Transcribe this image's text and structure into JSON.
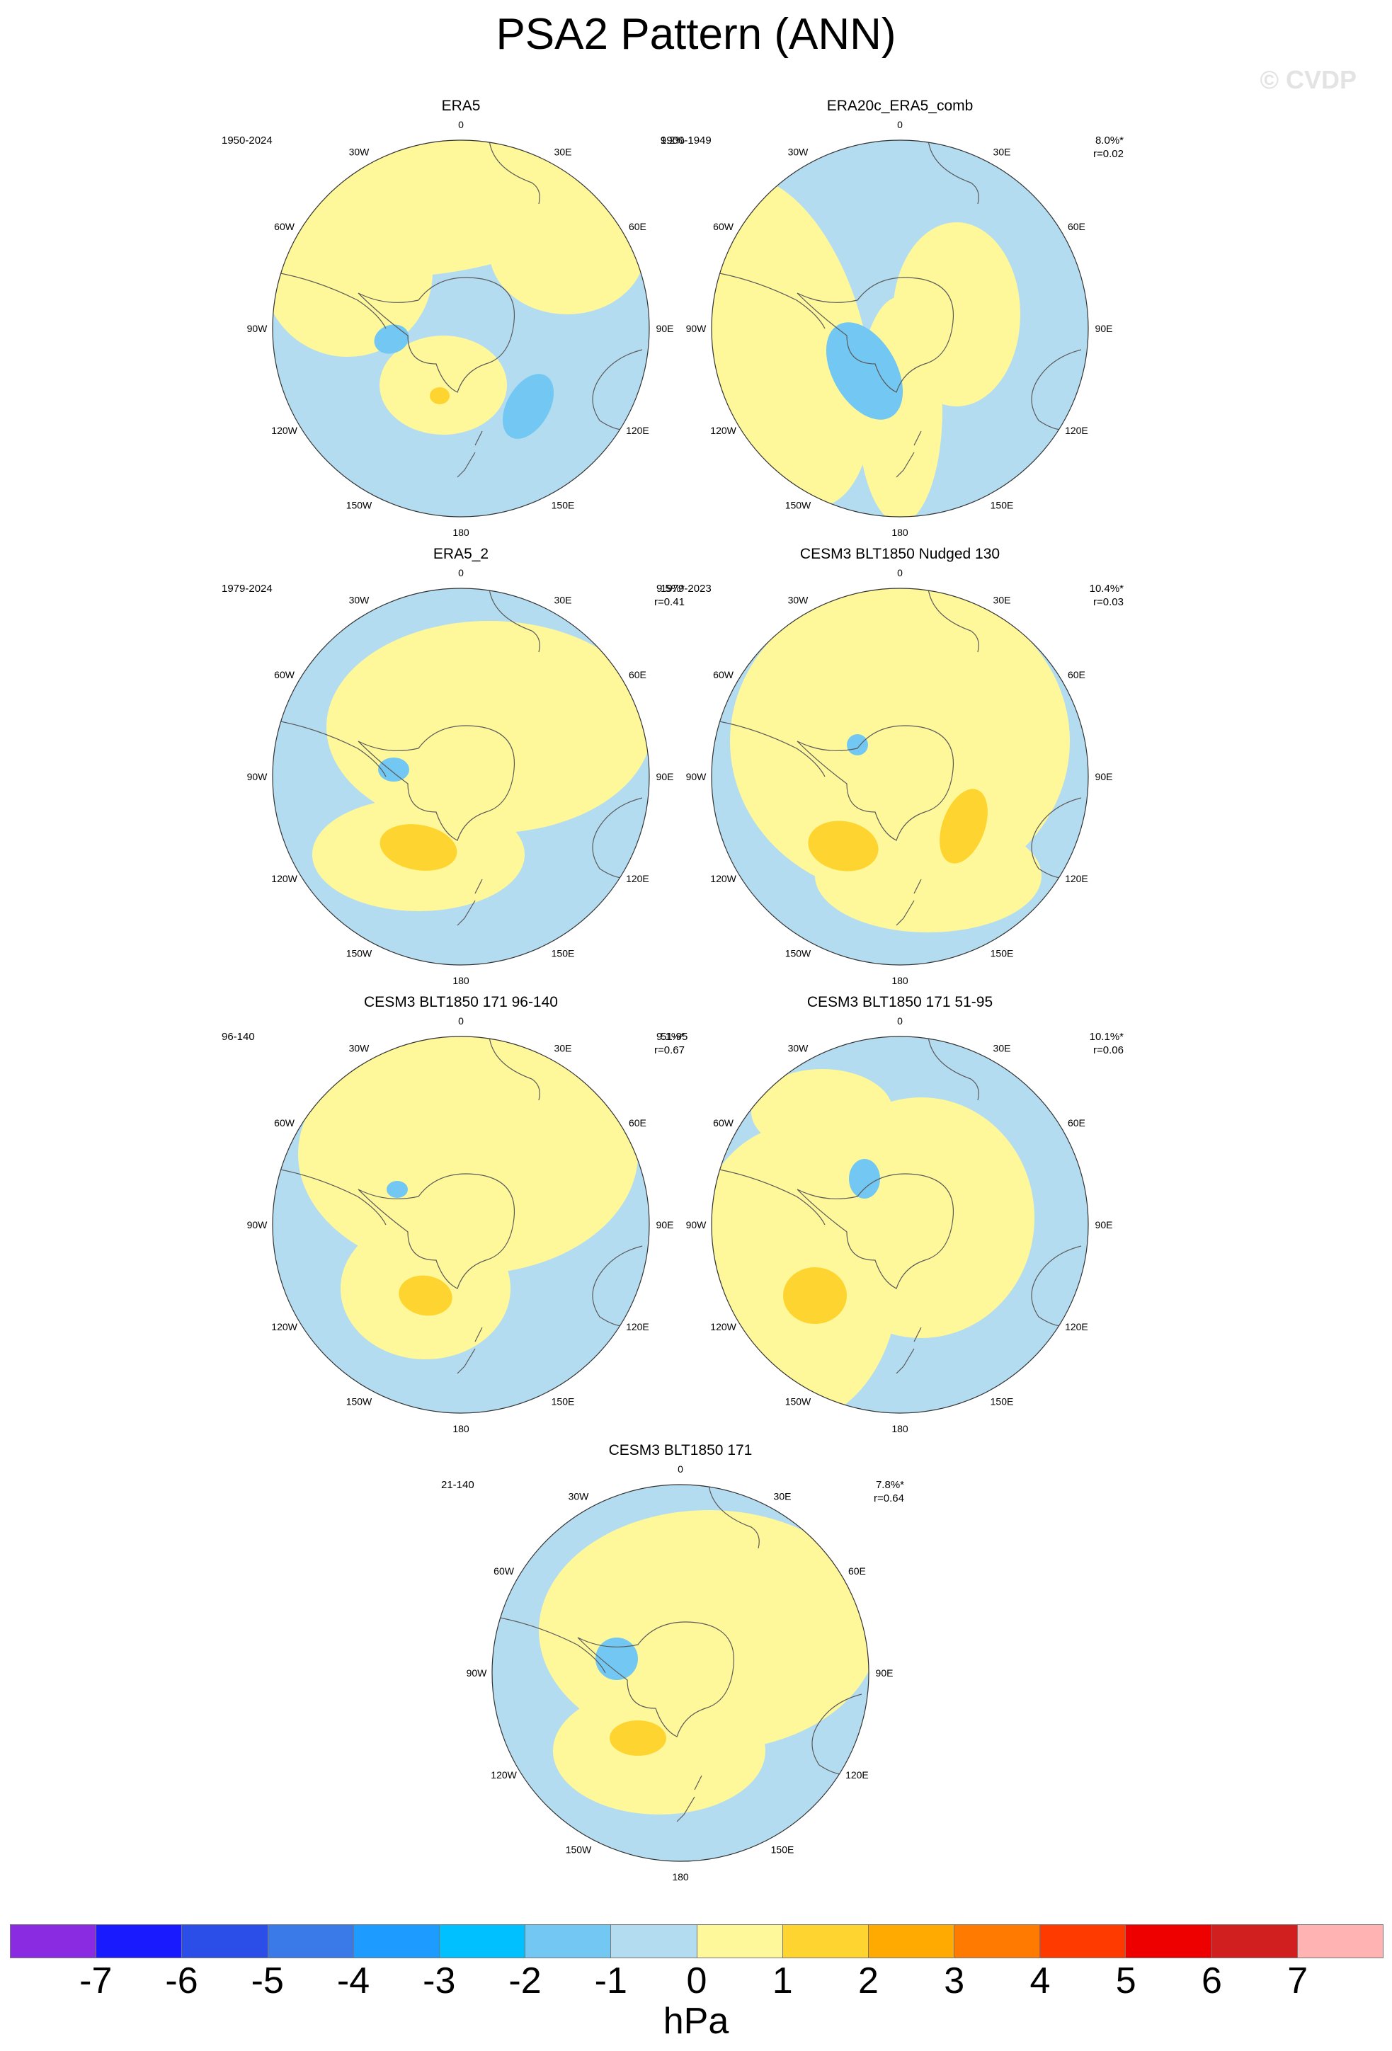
{
  "title": "PSA2 Pattern (ANN)",
  "watermark": "© CVDP",
  "colors": {
    "ocean_neg1": "#b4dcf0",
    "pos1": "#fff89a",
    "pos2": "#fed530",
    "neg2": "#72c8f2",
    "coast": "#5a5a5a"
  },
  "panels": [
    {
      "name": "ERA5",
      "period": "1950-2024",
      "stats": [
        "9.2%"
      ]
    },
    {
      "name": "ERA20c_ERA5_comb",
      "period": "1900-1949",
      "stats": [
        "8.0%*",
        "r=0.02"
      ]
    },
    {
      "name": "ERA5_2",
      "period": "1979-2024",
      "stats": [
        "9.5%*",
        "r=0.41"
      ]
    },
    {
      "name": "CESM3 BLT1850 Nudged 130",
      "period": "1979-2023",
      "stats": [
        "10.4%*",
        "r=0.03"
      ]
    },
    {
      "name": "CESM3 BLT1850 171 96-140",
      "period": "96-140",
      "stats": [
        "9.1%*",
        "r=0.67"
      ]
    },
    {
      "name": "CESM3 BLT1850 171 51-95",
      "period": "51-95",
      "stats": [
        "10.1%*",
        "r=0.06"
      ]
    },
    {
      "name": "CESM3 BLT1850 171",
      "period": "21-140",
      "stats": [
        "7.8%*",
        "r=0.64"
      ]
    }
  ],
  "map_labels": {
    "top": "0",
    "bottom": "180",
    "left": "90W",
    "right": "90E",
    "upper_left_outer": "60W",
    "upper_left_inner": "30W",
    "upper_right_inner": "30E",
    "upper_right_outer": "60E",
    "lower_left_outer": "120W",
    "lower_left_inner": "150W",
    "lower_right_outer": "120E",
    "lower_right_inner": "150E"
  },
  "colorbar": {
    "colors": [
      "#8a2be2",
      "#1a1aff",
      "#2b4ee8",
      "#3a7ae8",
      "#1e9bff",
      "#00c0ff",
      "#72c8f2",
      "#b4dcf0",
      "#fff89a",
      "#fed530",
      "#ffaa00",
      "#ff7a00",
      "#ff3a00",
      "#ee0000",
      "#d11f1f",
      "#ffb3b3"
    ],
    "ticks": [
      "-7",
      "-6",
      "-5",
      "-4",
      "-3",
      "-2",
      "-1",
      "0",
      "1",
      "2",
      "3",
      "4",
      "5",
      "6",
      "7"
    ],
    "units": "hPa"
  }
}
